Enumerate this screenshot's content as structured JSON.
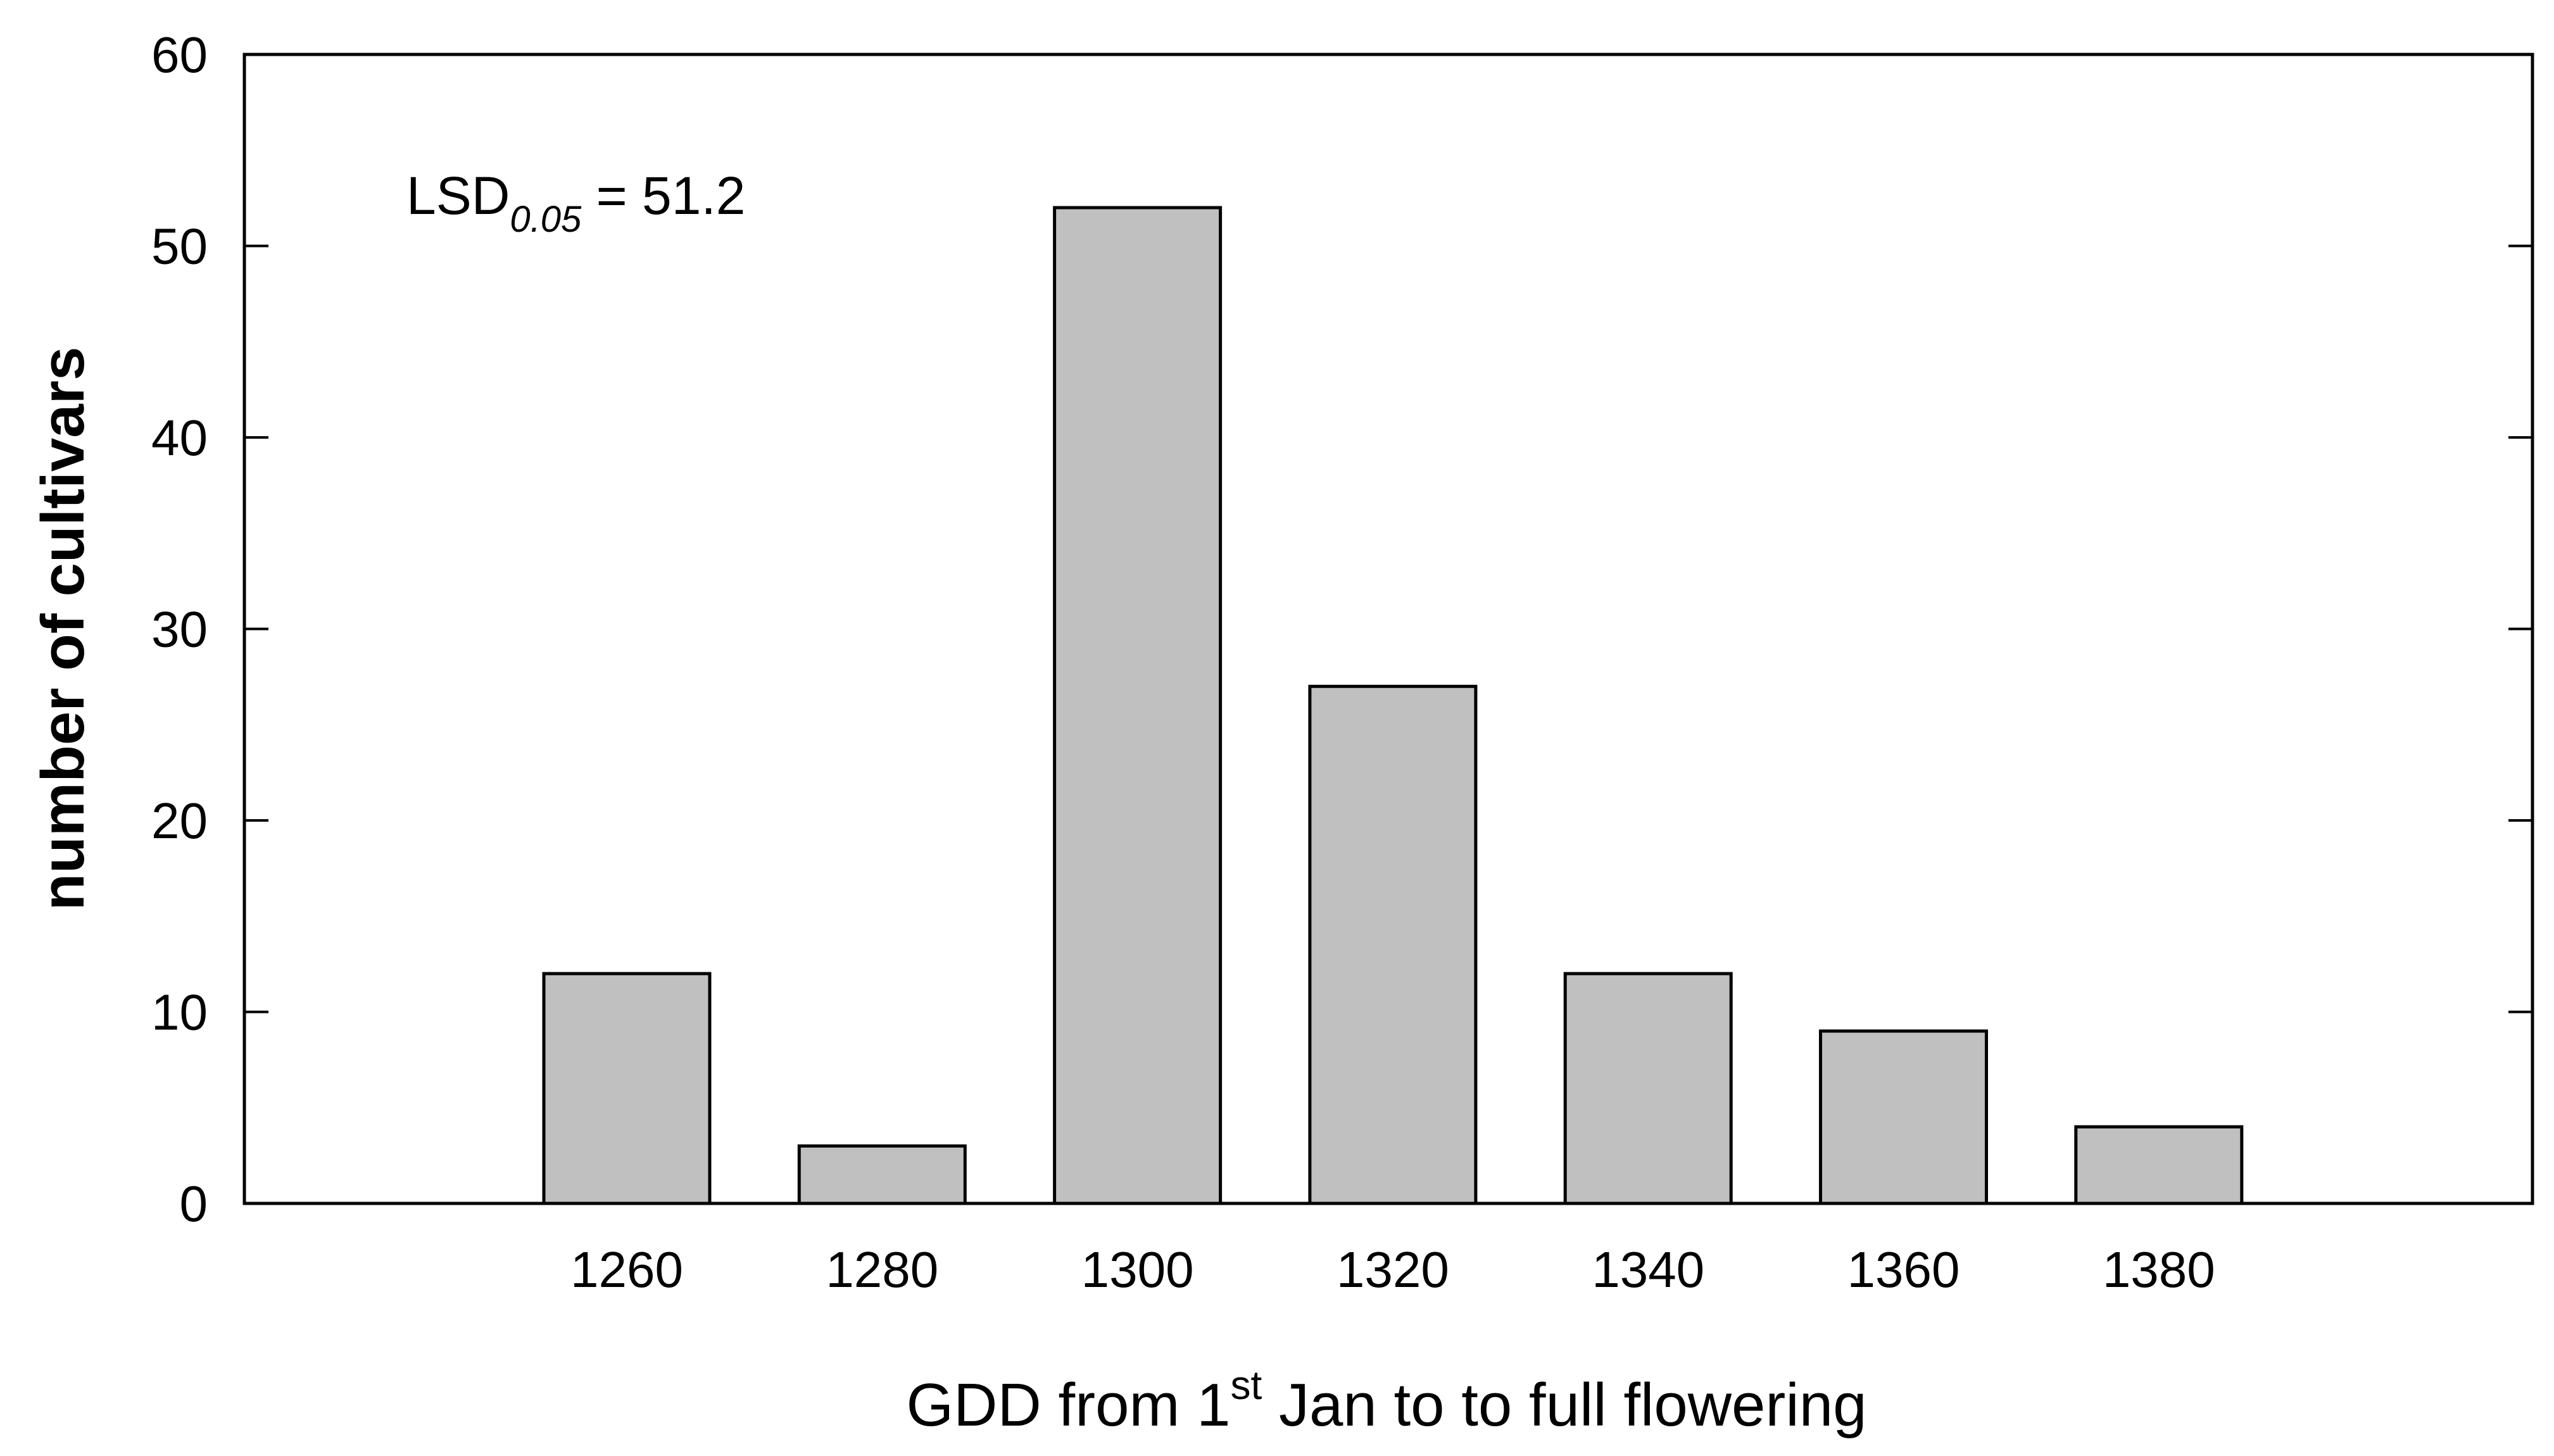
{
  "chart_data": {
    "type": "bar",
    "categories": [
      "1260",
      "1280",
      "1300",
      "1320",
      "1340",
      "1360",
      "1380"
    ],
    "values": [
      12,
      3,
      52,
      27,
      12,
      9,
      4
    ],
    "xlabel": {
      "prefix": "GDD from 1",
      "superscript": "st",
      "suffix": " Jan to to full flowering"
    },
    "ylabel": "number of cultivars",
    "ylim": [
      0,
      60
    ],
    "yticks": [
      "0",
      "10",
      "20",
      "30",
      "40",
      "50",
      "60"
    ],
    "annotation": {
      "prefix": "LSD",
      "subscript": "0.05",
      "suffix": " = 51.2"
    },
    "grid": false,
    "colors": {
      "bar_fill": "#c0c0c0",
      "bar_stroke": "#000000",
      "axis": "#000000"
    }
  }
}
